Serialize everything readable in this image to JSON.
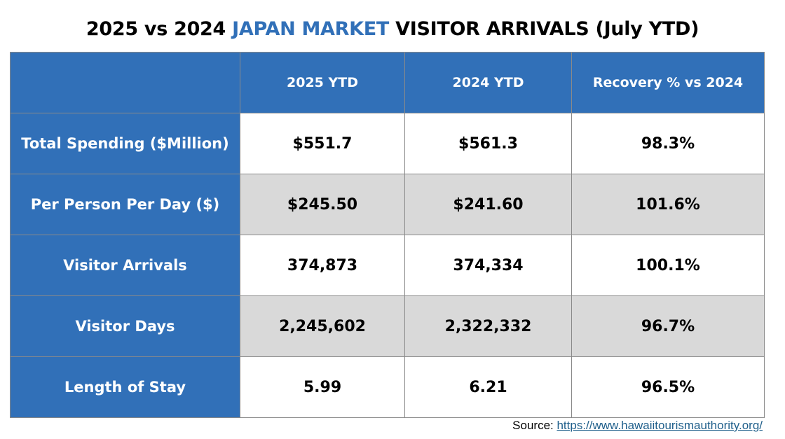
{
  "title": {
    "prefix": "2025 vs 2024 ",
    "highlight": "JAPAN MARKET",
    "suffix": " VISITOR ARRIVALS (July YTD)",
    "highlight_color": "#3170b8"
  },
  "table": {
    "header_color": "#3170b8",
    "shade_color": "#d9d9d9",
    "columns": [
      "",
      "2025 YTD",
      "2024 YTD",
      "Recovery % vs 2024"
    ],
    "rows": [
      {
        "label": "Total Spending ($Million)",
        "y2025": "$551.7",
        "y2024": "$561.3",
        "recovery": "98.3%"
      },
      {
        "label": "Per Person Per Day ($)",
        "y2025": "$245.50",
        "y2024": "$241.60",
        "recovery": "101.6%"
      },
      {
        "label": "Visitor Arrivals",
        "y2025": "374,873",
        "y2024": "374,334",
        "recovery": "100.1%"
      },
      {
        "label": "Visitor Days",
        "y2025": "2,245,602",
        "y2024": "2,322,332",
        "recovery": "96.7%"
      },
      {
        "label": "Length of Stay",
        "y2025": "5.99",
        "y2024": "6.21",
        "recovery": "96.5%"
      }
    ]
  },
  "source": {
    "label": "Source: ",
    "link_text": "https://www.hawaiitourismauthority.org/"
  }
}
